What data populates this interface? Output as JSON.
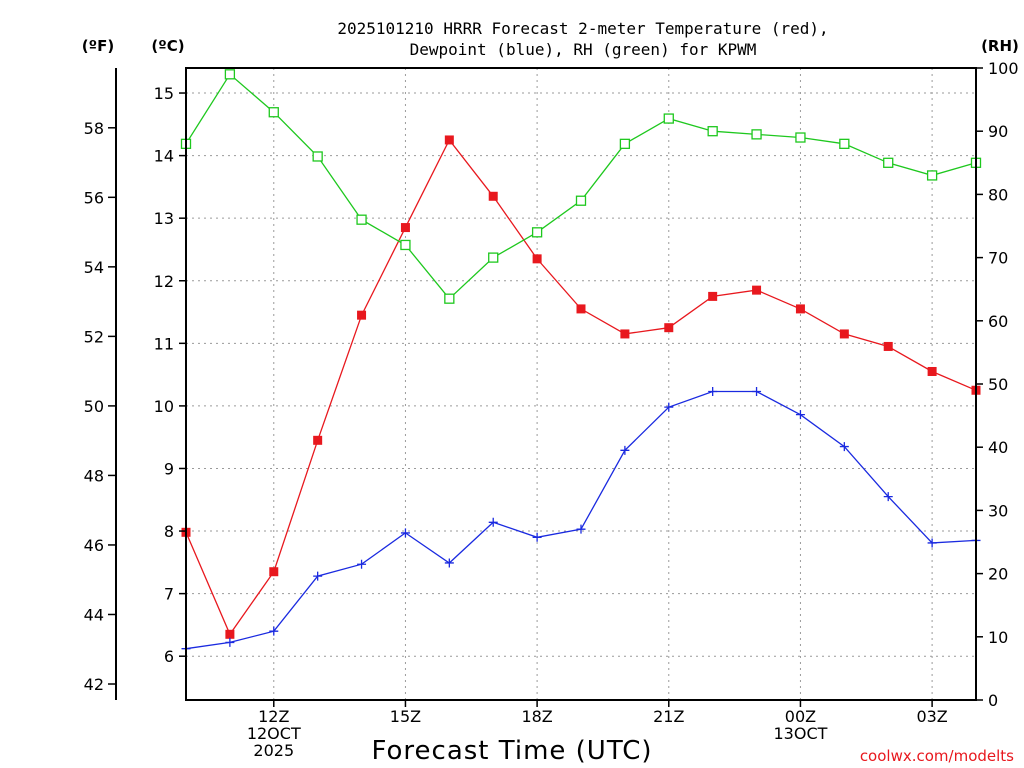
{
  "chart_data": {
    "type": "line",
    "title_lines": [
      "2025101210 HRRR Forecast 2-meter Temperature (red),",
      "Dewpoint (blue), RH (green) for KPWM"
    ],
    "xlabel": "Forecast Time (UTC)",
    "credit": "coolwx.com/modelts",
    "x": [
      10,
      11,
      12,
      13,
      14,
      15,
      16,
      17,
      18,
      19,
      20,
      21,
      22,
      23,
      24,
      25,
      26,
      27,
      28
    ],
    "xlim": [
      10,
      28
    ],
    "x_ticks": [
      {
        "x": 12,
        "lines": [
          "12Z",
          "12OCT",
          "2025"
        ]
      },
      {
        "x": 15,
        "lines": [
          "15Z"
        ]
      },
      {
        "x": 18,
        "lines": [
          "18Z"
        ]
      },
      {
        "x": 21,
        "lines": [
          "21Z"
        ]
      },
      {
        "x": 24,
        "lines": [
          "00Z",
          "13OCT"
        ]
      },
      {
        "x": 27,
        "lines": [
          "03Z"
        ]
      }
    ],
    "axes": {
      "celsius": {
        "unit_label": "(ºC)",
        "lim": [
          5.3,
          15.4
        ],
        "ticks": [
          6,
          7,
          8,
          9,
          10,
          11,
          12,
          13,
          14,
          15
        ]
      },
      "fahrenheit": {
        "unit_label": "(ºF)",
        "lim": [
          41.54,
          59.72
        ],
        "ticks": [
          42,
          44,
          46,
          48,
          50,
          52,
          54,
          56,
          58
        ]
      },
      "rh": {
        "unit_label": "(RH)",
        "lim": [
          0,
          100
        ],
        "ticks": [
          0,
          10,
          20,
          30,
          40,
          50,
          60,
          70,
          80,
          90,
          100
        ]
      }
    },
    "series": [
      {
        "name": "Temperature",
        "color": "#e8181e",
        "marker": "filled-square",
        "axis": "celsius",
        "values": [
          7.98,
          6.35,
          7.35,
          9.45,
          11.45,
          12.85,
          14.25,
          13.35,
          12.35,
          11.55,
          11.15,
          11.25,
          11.75,
          11.85,
          11.55,
          11.15,
          10.95,
          10.55,
          10.25
        ]
      },
      {
        "name": "Dewpoint",
        "color": "#1a2ae0",
        "marker": "plus",
        "axis": "celsius",
        "values": [
          6.12,
          6.22,
          6.4,
          7.28,
          7.47,
          7.97,
          7.49,
          8.14,
          7.9,
          8.03,
          9.29,
          9.98,
          10.23,
          10.23,
          9.86,
          9.35,
          8.55,
          7.81,
          7.85
        ]
      },
      {
        "name": "RH",
        "color": "#1ec81e",
        "marker": "open-square",
        "axis": "rh",
        "values": [
          88,
          99,
          93,
          86,
          76,
          72,
          63.5,
          70,
          74,
          79,
          88,
          92,
          90,
          89.5,
          89,
          88,
          85,
          83,
          85
        ]
      }
    ]
  }
}
